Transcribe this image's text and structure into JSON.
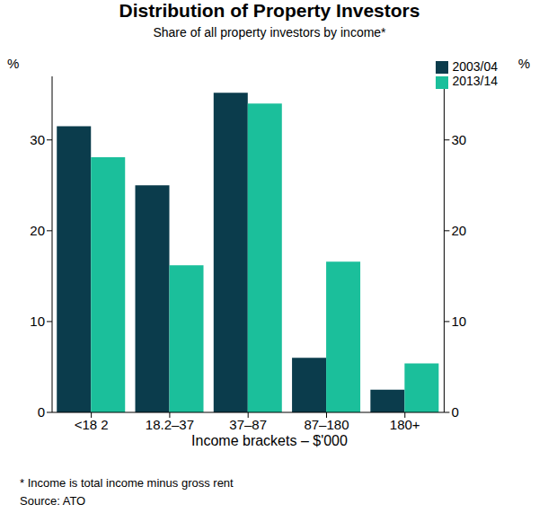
{
  "chart_data": {
    "type": "bar",
    "title": "Distribution of Property Investors",
    "subtitle": "Share of all property investors by income*",
    "categories": [
      "<18 2",
      "18.2–37",
      "37–87",
      "87–180",
      "180+"
    ],
    "series": [
      {
        "name": "2003/04",
        "color": "#0b3c4c",
        "values": [
          31.5,
          25,
          35.2,
          6,
          2.5
        ]
      },
      {
        "name": "2013/14",
        "color": "#1bbf9b",
        "values": [
          28.1,
          16.2,
          34,
          16.6,
          5.4
        ]
      }
    ],
    "x_label": "Income brackets – $'000",
    "y_label": "%",
    "ylim": [
      0,
      37
    ],
    "yticks": [
      0,
      10,
      20,
      30
    ],
    "grid": false,
    "legend": "upper right",
    "notes": [
      "* Income is total income minus gross rent",
      "Source: ATO"
    ]
  }
}
